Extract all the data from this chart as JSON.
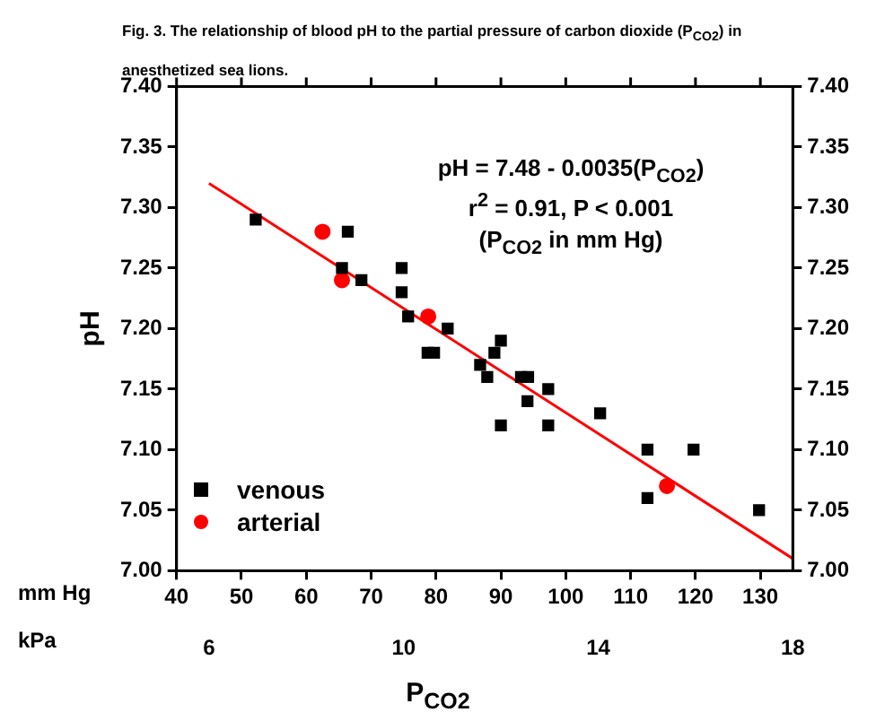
{
  "chart_data": {
    "type": "scatter",
    "title": "Fig. 3. The relationship of blood pH to the partial pressure of carbon dioxide (P$_{CO2}$) in anesthetized sea lions.",
    "xlabel": "P$_{CO2}$",
    "ylabel": "pH",
    "annotations": [
      "pH = 7.48 - 0.0035(P$_{CO2}$)",
      "r$^{2}$ = 0.91, P < 0.001",
      "(P$_{CO2}$ in mm Hg)",
      "mm Hg",
      "kPa"
    ],
    "series": [
      {
        "name": "venous",
        "color": "#000000",
        "marker": "square",
        "x": [
          52.2,
          66.4,
          65.5,
          68.5,
          74.7,
          74.7,
          75.7,
          81.8,
          78.7,
          79.7,
          90,
          89,
          86.8,
          87.9,
          93.1,
          94.2,
          97.3,
          94.1,
          90,
          97.3,
          105.3,
          112.6,
          112.6,
          119.7,
          129.8
        ],
        "values": [
          7.29,
          7.28,
          7.25,
          7.24,
          7.25,
          7.23,
          7.21,
          7.2,
          7.18,
          7.18,
          7.19,
          7.18,
          7.17,
          7.16,
          7.16,
          7.16,
          7.15,
          7.14,
          7.12,
          7.12,
          7.13,
          7.1,
          7.06,
          7.1,
          7.05
        ]
      },
      {
        "name": "arterial",
        "color": "#ff0000",
        "marker": "circle",
        "x": [
          62.5,
          65.5,
          78.8,
          115.6
        ],
        "values": [
          7.28,
          7.24,
          7.21,
          7.07
        ]
      },
      {
        "type": "line",
        "color": "#ff0000",
        "marker": "none",
        "x": [
          45,
          135
        ],
        "values": [
          7.32,
          7.01
        ]
      }
    ],
    "xlim": [
      40,
      135
    ],
    "xticks": [
      40,
      50,
      60,
      70,
      80,
      90,
      100,
      110,
      120,
      130
    ],
    "x2lim": [
      5.33,
      18
    ],
    "x2ticks": [
      6,
      10,
      14,
      18
    ],
    "ylim": [
      7.0,
      7.4
    ],
    "yticks": [
      {
        "value": 7.0,
        "label": "7.00"
      },
      {
        "value": 7.05,
        "label": "7.05"
      },
      {
        "value": 7.1,
        "label": "7.10"
      },
      {
        "value": 7.15,
        "label": "7.15"
      },
      {
        "value": 7.2,
        "label": "7.20"
      },
      {
        "value": 7.25,
        "label": "7.25"
      },
      {
        "value": 7.3,
        "label": "7.30"
      },
      {
        "value": 7.35,
        "label": "7.35"
      },
      {
        "value": 7.4,
        "label": "7.40"
      }
    ],
    "y2lim": [
      7.0,
      7.4
    ],
    "y2ticks": [
      {
        "value": 7.0,
        "label": "7.00"
      },
      {
        "value": 7.05,
        "label": "7.05"
      },
      {
        "value": 7.1,
        "label": "7.10"
      },
      {
        "value": 7.15,
        "label": "7.15"
      },
      {
        "value": 7.2,
        "label": "7.20"
      },
      {
        "value": 7.25,
        "label": "7.25"
      },
      {
        "value": 7.3,
        "label": "7.30"
      },
      {
        "value": 7.35,
        "label": "7.35"
      },
      {
        "value": 7.4,
        "label": "7.40"
      }
    ],
    "grid": false,
    "legend": "bottom left"
  }
}
